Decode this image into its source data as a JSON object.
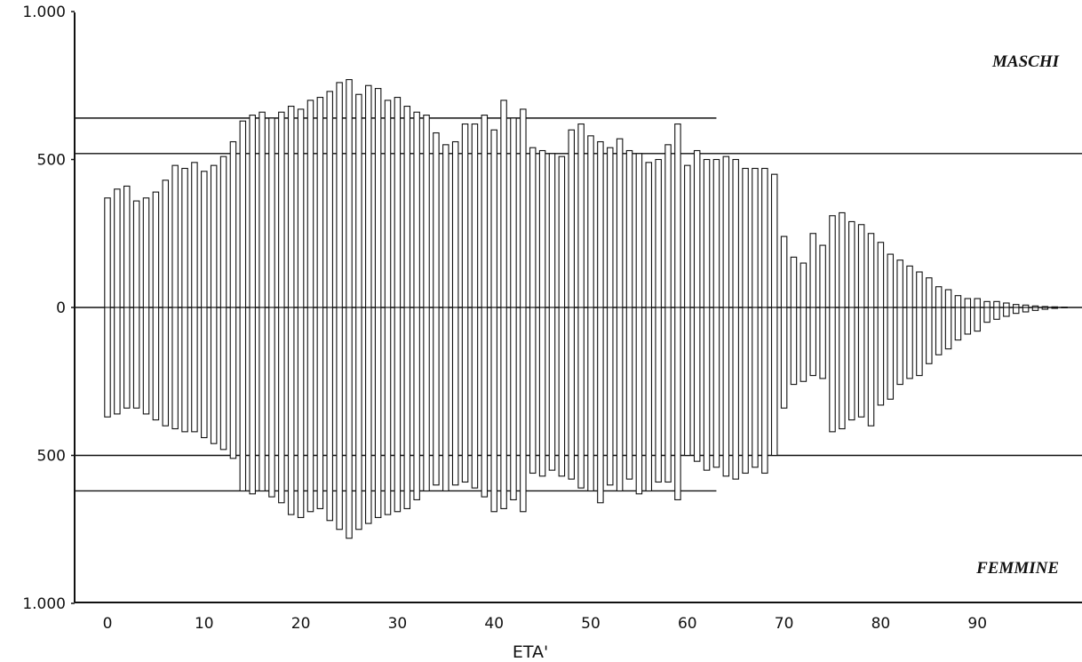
{
  "chart_data": {
    "type": "bar",
    "orientation": "population-pyramid-horizontal",
    "xlabel": "ETA'",
    "ylabel": "",
    "title": "",
    "x_ticks": [
      0,
      10,
      20,
      30,
      40,
      50,
      60,
      70,
      80,
      90
    ],
    "y_ticks": [
      {
        "value": 1000,
        "label": "1.000"
      },
      {
        "value": 500,
        "label": "500"
      },
      {
        "value": 0,
        "label": "0"
      },
      {
        "value": -500,
        "label": "500"
      },
      {
        "value": -1000,
        "label": "1.000"
      }
    ],
    "ylim": [
      -1000,
      1000
    ],
    "xlim": [
      -1,
      101
    ],
    "ages": [
      0,
      1,
      2,
      3,
      4,
      5,
      6,
      7,
      8,
      9,
      10,
      11,
      12,
      13,
      14,
      15,
      16,
      17,
      18,
      19,
      20,
      21,
      22,
      23,
      24,
      25,
      26,
      27,
      28,
      29,
      30,
      31,
      32,
      33,
      34,
      35,
      36,
      37,
      38,
      39,
      40,
      41,
      42,
      43,
      44,
      45,
      46,
      47,
      48,
      49,
      50,
      51,
      52,
      53,
      54,
      55,
      56,
      57,
      58,
      59,
      60,
      61,
      62,
      63,
      64,
      65,
      66,
      67,
      68,
      69,
      70,
      71,
      72,
      73,
      74,
      75,
      76,
      77,
      78,
      79,
      80,
      81,
      82,
      83,
      84,
      85,
      86,
      87,
      88,
      89,
      90,
      91,
      92,
      93,
      94,
      95,
      96,
      97,
      98,
      99
    ],
    "series": [
      {
        "name": "MASCHI",
        "values": [
          370,
          400,
          410,
          360,
          370,
          390,
          430,
          480,
          470,
          490,
          460,
          480,
          510,
          560,
          630,
          650,
          660,
          640,
          660,
          680,
          670,
          700,
          710,
          730,
          760,
          770,
          720,
          750,
          740,
          700,
          710,
          680,
          660,
          650,
          590,
          550,
          560,
          620,
          620,
          650,
          600,
          700,
          640,
          670,
          540,
          530,
          520,
          510,
          600,
          620,
          580,
          560,
          540,
          570,
          530,
          520,
          490,
          500,
          550,
          620,
          480,
          530,
          500,
          500,
          510,
          500,
          470,
          470,
          470,
          450,
          240,
          170,
          150,
          250,
          210,
          310,
          320,
          290,
          280,
          250,
          220,
          180,
          160,
          140,
          120,
          100,
          70,
          60,
          40,
          30,
          30,
          20,
          20,
          15,
          10,
          8,
          5,
          3,
          2,
          1
        ]
      },
      {
        "name": "FEMMINE",
        "values": [
          370,
          360,
          340,
          340,
          360,
          380,
          400,
          410,
          420,
          420,
          440,
          460,
          480,
          510,
          620,
          630,
          620,
          640,
          660,
          700,
          710,
          690,
          680,
          720,
          750,
          780,
          750,
          730,
          710,
          700,
          690,
          680,
          650,
          620,
          600,
          620,
          600,
          590,
          610,
          640,
          690,
          680,
          650,
          690,
          560,
          570,
          550,
          570,
          580,
          610,
          620,
          660,
          600,
          620,
          580,
          630,
          620,
          590,
          590,
          650,
          500,
          520,
          550,
          540,
          570,
          580,
          560,
          540,
          560,
          500,
          340,
          260,
          250,
          230,
          240,
          420,
          410,
          380,
          370,
          400,
          330,
          310,
          260,
          240,
          230,
          190,
          160,
          140,
          110,
          90,
          80,
          50,
          40,
          30,
          20,
          15,
          10,
          6,
          3,
          1
        ]
      }
    ],
    "reference_lines": [
      {
        "value": 640,
        "to_age": 63
      },
      {
        "value": 520,
        "to_age": 101
      },
      {
        "value": 0,
        "to_age": 101
      },
      {
        "value": -500,
        "to_age": 101
      },
      {
        "value": -620,
        "to_age": 63
      }
    ],
    "legend": [
      {
        "label": "MASCHI",
        "position": "top-right"
      },
      {
        "label": "FEMMINE",
        "position": "bottom-right"
      }
    ],
    "grid": false
  }
}
